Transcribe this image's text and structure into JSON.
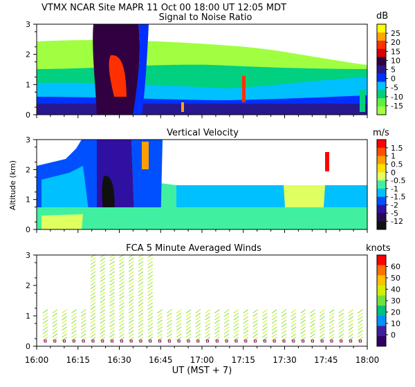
{
  "header": {
    "title": "VTMX  NCAR Site  MAPR 11 Oct 00  18:00 UT  12:05  MDT"
  },
  "shared": {
    "x_ticks": [
      "16:00",
      "16:15",
      "16:30",
      "16:45",
      "17:00",
      "17:15",
      "17:30",
      "17:45",
      "18:00"
    ],
    "xlabel": "UT  (MST + 7)",
    "ylabel": "Altitude (km)",
    "y_ticks": [
      "0",
      "1",
      "2",
      "3"
    ]
  },
  "chart_data": [
    {
      "type": "heatmap",
      "title": "Signal to Noise Ratio",
      "units": "dB",
      "ylim": [
        0,
        3
      ],
      "xlim": [
        "16:00",
        "18:00"
      ],
      "colorbar_labels": [
        "25",
        "20",
        "15",
        "10",
        "5",
        "0",
        "-5",
        "-10",
        "-15"
      ],
      "colorbar_colors": [
        "#ffff00",
        "#ffa500",
        "#ff3000",
        "#d80000",
        "#300040",
        "#281890",
        "#0030ff",
        "#00c0ff",
        "#00d080",
        "#60f040",
        "#a0ff40"
      ]
    },
    {
      "type": "heatmap",
      "title": "Vertical Velocity",
      "units": "m/s",
      "ylim": [
        0,
        3
      ],
      "xlim": [
        "16:00",
        "18:00"
      ],
      "colorbar_labels": [
        "1.5",
        "1",
        "0.5",
        "0",
        "-0.5",
        "-1",
        "-1.5",
        "-2",
        "-5",
        "-12"
      ],
      "colorbar_colors": [
        "#ff0000",
        "#ff5000",
        "#ffa000",
        "#ffe000",
        "#e0ff60",
        "#40f0a0",
        "#00c0ff",
        "#0050ff",
        "#3010a0",
        "#2a0a50",
        "#101010"
      ]
    },
    {
      "type": "scatter",
      "title": "FCA 5 Minute Averaged Winds",
      "units": "knots",
      "ylim": [
        0,
        3
      ],
      "xlim": [
        "16:00",
        "18:00"
      ],
      "colorbar_labels": [
        "60",
        "50",
        "40",
        "30",
        "20",
        "10",
        "0"
      ],
      "colorbar_colors": [
        "#ff0000",
        "#ff7000",
        "#ffc000",
        "#d0f000",
        "#70e040",
        "#00c080",
        "#0090ff",
        "#4020a0",
        "#300060"
      ]
    }
  ]
}
